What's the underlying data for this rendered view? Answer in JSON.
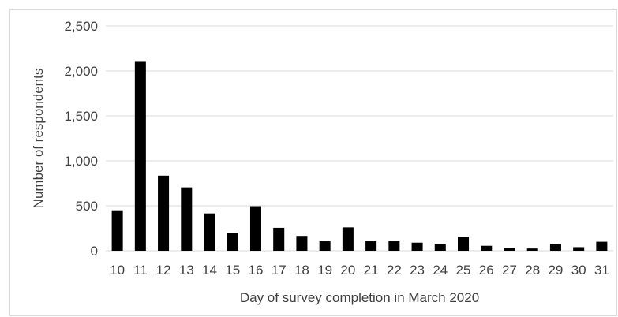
{
  "chart_data": {
    "type": "bar",
    "title": "",
    "xlabel": "Day of survey completion in March 2020",
    "ylabel": "Number of respondents",
    "categories": [
      "10",
      "11",
      "12",
      "13",
      "14",
      "15",
      "16",
      "17",
      "18",
      "19",
      "20",
      "21",
      "22",
      "23",
      "24",
      "25",
      "26",
      "27",
      "28",
      "29",
      "30",
      "31"
    ],
    "values": [
      450,
      2110,
      835,
      705,
      415,
      200,
      495,
      255,
      165,
      105,
      260,
      105,
      105,
      90,
      70,
      155,
      55,
      35,
      25,
      75,
      40,
      100
    ],
    "ylim": [
      0,
      2500
    ],
    "yticks": [
      0,
      500,
      1000,
      1500,
      2000,
      2500
    ],
    "ytick_labels": [
      "0",
      "500",
      "1,000",
      "1,500",
      "2,000",
      "2,500"
    ],
    "grid": true,
    "legend": "none",
    "colors": {
      "bar": "#000000",
      "grid": "#d9d9d9",
      "text": "#404040"
    }
  }
}
